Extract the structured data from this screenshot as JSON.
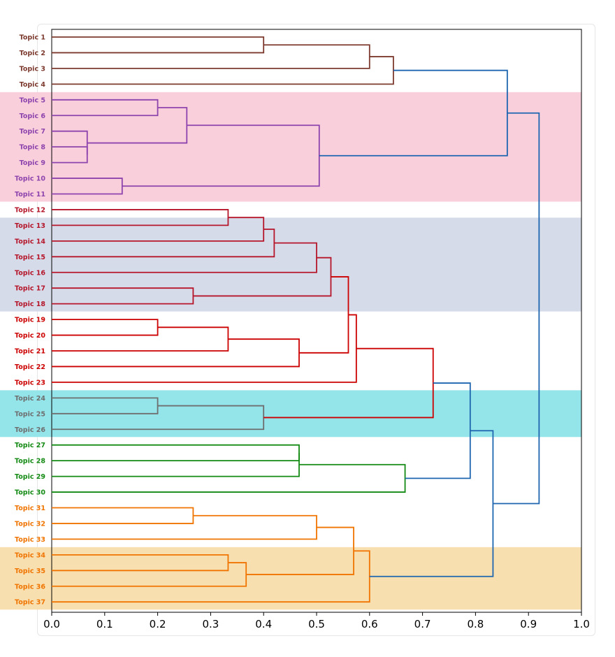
{
  "chart_data": {
    "type": "dendrogram",
    "orientation": "horizontal",
    "xlim": [
      0,
      1
    ],
    "x_ticks": [
      "0.0",
      "0.1",
      "0.2",
      "0.3",
      "0.4",
      "0.5",
      "0.6",
      "0.7",
      "0.8",
      "0.9",
      "1.0"
    ],
    "leaves": [
      {
        "label": "Topic 1",
        "color": "#7d3a2e"
      },
      {
        "label": "Topic 2",
        "color": "#7d3a2e"
      },
      {
        "label": "Topic 3",
        "color": "#7d3a2e"
      },
      {
        "label": "Topic 4",
        "color": "#7d3a2e"
      },
      {
        "label": "Topic 5",
        "color": "#8e44ad"
      },
      {
        "label": "Topic 6",
        "color": "#8e44ad"
      },
      {
        "label": "Topic 7",
        "color": "#8e44ad"
      },
      {
        "label": "Topic 8",
        "color": "#8e44ad"
      },
      {
        "label": "Topic 9",
        "color": "#8e44ad"
      },
      {
        "label": "Topic 10",
        "color": "#8e44ad"
      },
      {
        "label": "Topic 11",
        "color": "#8e44ad"
      },
      {
        "label": "Topic 12",
        "color": "#b5162a"
      },
      {
        "label": "Topic 13",
        "color": "#b5162a"
      },
      {
        "label": "Topic 14",
        "color": "#b5162a"
      },
      {
        "label": "Topic 15",
        "color": "#b5162a"
      },
      {
        "label": "Topic 16",
        "color": "#b5162a"
      },
      {
        "label": "Topic 17",
        "color": "#b5162a"
      },
      {
        "label": "Topic 18",
        "color": "#b5162a"
      },
      {
        "label": "Topic 19",
        "color": "#cc0000"
      },
      {
        "label": "Topic 20",
        "color": "#cc0000"
      },
      {
        "label": "Topic 21",
        "color": "#cc0000"
      },
      {
        "label": "Topic 22",
        "color": "#cc0000"
      },
      {
        "label": "Topic 23",
        "color": "#cc0000"
      },
      {
        "label": "Topic 24",
        "color": "#6e6e6e"
      },
      {
        "label": "Topic 25",
        "color": "#6e6e6e"
      },
      {
        "label": "Topic 26",
        "color": "#6e6e6e"
      },
      {
        "label": "Topic 27",
        "color": "#138a13"
      },
      {
        "label": "Topic 28",
        "color": "#138a13"
      },
      {
        "label": "Topic 29",
        "color": "#138a13"
      },
      {
        "label": "Topic 30",
        "color": "#138a13"
      },
      {
        "label": "Topic 31",
        "color": "#f07400"
      },
      {
        "label": "Topic 32",
        "color": "#f07400"
      },
      {
        "label": "Topic 33",
        "color": "#f07400"
      },
      {
        "label": "Topic 34",
        "color": "#f07400"
      },
      {
        "label": "Topic 35",
        "color": "#f07400"
      },
      {
        "label": "Topic 36",
        "color": "#f07400"
      },
      {
        "label": "Topic 37",
        "color": "#f07400"
      }
    ],
    "highlight_bands": [
      {
        "from_leaf": 5,
        "to_leaf": 11,
        "color": "#f9cfdc"
      },
      {
        "from_leaf": 13,
        "to_leaf": 18,
        "color": "#d6dbea"
      },
      {
        "from_leaf": 24,
        "to_leaf": 26,
        "color": "#94e5ea"
      },
      {
        "from_leaf": 34,
        "to_leaf": 37,
        "color": "#f8dfaf"
      }
    ],
    "merges": [
      {
        "a": "L1",
        "b": "L2",
        "height": 0.4,
        "color": "#7d3a2e"
      },
      {
        "a": "M0",
        "b": "L3",
        "height": 0.6,
        "color": "#7d3a2e"
      },
      {
        "a": "M1",
        "b": "L4",
        "height": 0.645,
        "color": "#7d3a2e"
      },
      {
        "a": "L5",
        "b": "L6",
        "height": 0.2,
        "color": "#8e44ad"
      },
      {
        "a": "L8",
        "b": "L9",
        "height": 0.067,
        "color": "#8e44ad"
      },
      {
        "a": "M4",
        "b": "L7",
        "height": 0.067,
        "color": "#8e44ad"
      },
      {
        "a": "M3",
        "b": "M5",
        "height": 0.255,
        "color": "#8e44ad"
      },
      {
        "a": "L10",
        "b": "L11",
        "height": 0.133,
        "color": "#8e44ad"
      },
      {
        "a": "M6",
        "b": "M7",
        "height": 0.505,
        "color": "#8e44ad"
      },
      {
        "a": "M2",
        "b": "M8",
        "height": 0.86,
        "color": "#1f66b0"
      },
      {
        "a": "L12",
        "b": "L13",
        "height": 0.333,
        "color": "#b5162a"
      },
      {
        "a": "M10",
        "b": "L14",
        "height": 0.4,
        "color": "#b5162a"
      },
      {
        "a": "M11",
        "b": "L15",
        "height": 0.42,
        "color": "#b5162a"
      },
      {
        "a": "M12",
        "b": "L16",
        "height": 0.5,
        "color": "#b5162a"
      },
      {
        "a": "L17",
        "b": "L18",
        "height": 0.267,
        "color": "#b5162a"
      },
      {
        "a": "M13",
        "b": "M14",
        "height": 0.527,
        "color": "#b5162a"
      },
      {
        "a": "L19",
        "b": "L20",
        "height": 0.2,
        "color": "#cc0000"
      },
      {
        "a": "M16",
        "b": "L21",
        "height": 0.333,
        "color": "#cc0000"
      },
      {
        "a": "M17",
        "b": "L22",
        "height": 0.467,
        "color": "#cc0000"
      },
      {
        "a": "M15",
        "b": "M18",
        "height": 0.56,
        "color": "#cc0000"
      },
      {
        "a": "M19",
        "b": "L23",
        "height": 0.575,
        "color": "#cc0000"
      },
      {
        "a": "L24",
        "b": "L25",
        "height": 0.2,
        "color": "#6e6e6e"
      },
      {
        "a": "M21",
        "b": "L26",
        "height": 0.4,
        "color": "#6e6e6e"
      },
      {
        "a": "M20",
        "b": "M22",
        "height": 0.72,
        "color": "#cc0000"
      },
      {
        "a": "L27",
        "b": "L28",
        "height": 0.467,
        "color": "#138a13"
      },
      {
        "a": "M24",
        "b": "L29",
        "height": 0.467,
        "color": "#138a13"
      },
      {
        "a": "M25",
        "b": "L30",
        "height": 0.667,
        "color": "#138a13"
      },
      {
        "a": "M23",
        "b": "M26",
        "height": 0.79,
        "color": "#1f66b0"
      },
      {
        "a": "L31",
        "b": "L32",
        "height": 0.267,
        "color": "#f07400"
      },
      {
        "a": "M28",
        "b": "L33",
        "height": 0.5,
        "color": "#f07400"
      },
      {
        "a": "L34",
        "b": "L35",
        "height": 0.333,
        "color": "#f07400"
      },
      {
        "a": "M30",
        "b": "L36",
        "height": 0.367,
        "color": "#f07400"
      },
      {
        "a": "M29",
        "b": "M31",
        "height": 0.57,
        "color": "#f07400"
      },
      {
        "a": "M32",
        "b": "L37",
        "height": 0.6,
        "color": "#f07400"
      },
      {
        "a": "M27",
        "b": "M33",
        "height": 0.833,
        "color": "#1f66b0"
      },
      {
        "a": "M9",
        "b": "M34",
        "height": 0.92,
        "color": "#1f66b0"
      }
    ]
  }
}
